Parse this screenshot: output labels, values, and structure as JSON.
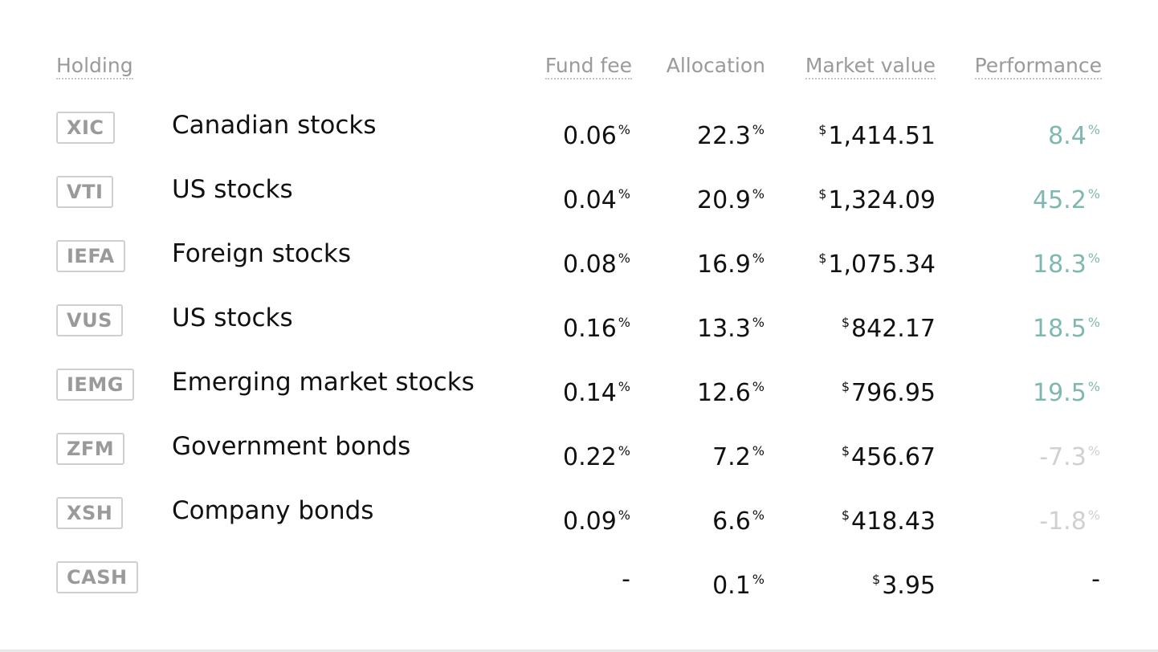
{
  "header": {
    "holding": "Holding",
    "fund_fee": "Fund fee",
    "allocation": "Allocation",
    "market_value": "Market value",
    "performance": "Performance"
  },
  "rows": [
    {
      "ticker": "XIC",
      "name": "Canadian stocks",
      "fee": "0.06",
      "allocation": "22.3",
      "market_value": "1,414.51",
      "performance": "8.4",
      "perf_state": "positive"
    },
    {
      "ticker": "VTI",
      "name": "US stocks",
      "fee": "0.04",
      "allocation": "20.9",
      "market_value": "1,324.09",
      "performance": "45.2",
      "perf_state": "positive"
    },
    {
      "ticker": "IEFA",
      "name": "Foreign stocks",
      "fee": "0.08",
      "allocation": "16.9",
      "market_value": "1,075.34",
      "performance": "18.3",
      "perf_state": "positive"
    },
    {
      "ticker": "VUS",
      "name": "US stocks",
      "fee": "0.16",
      "allocation": "13.3",
      "market_value": "842.17",
      "performance": "18.5",
      "perf_state": "positive"
    },
    {
      "ticker": "IEMG",
      "name": "Emerging market stocks",
      "fee": "0.14",
      "allocation": "12.6",
      "market_value": "796.95",
      "performance": "19.5",
      "perf_state": "positive"
    },
    {
      "ticker": "ZFM",
      "name": "Government bonds",
      "fee": "0.22",
      "allocation": "7.2",
      "market_value": "456.67",
      "performance": "-7.3",
      "perf_state": "negative"
    },
    {
      "ticker": "XSH",
      "name": "Company bonds",
      "fee": "0.09",
      "allocation": "6.6",
      "market_value": "418.43",
      "performance": "-1.8",
      "perf_state": "negative"
    },
    {
      "ticker": "CASH",
      "name": "",
      "fee": "-",
      "allocation": "0.1",
      "market_value": "3.95",
      "performance": "-",
      "perf_state": "none"
    }
  ],
  "units": {
    "percent": "%",
    "currency": "$"
  },
  "colors": {
    "positive": "#7fb8b0",
    "negative": "#d0d0d0",
    "ticker_border": "#cfcfcf",
    "header_text": "#9a9a9a"
  }
}
